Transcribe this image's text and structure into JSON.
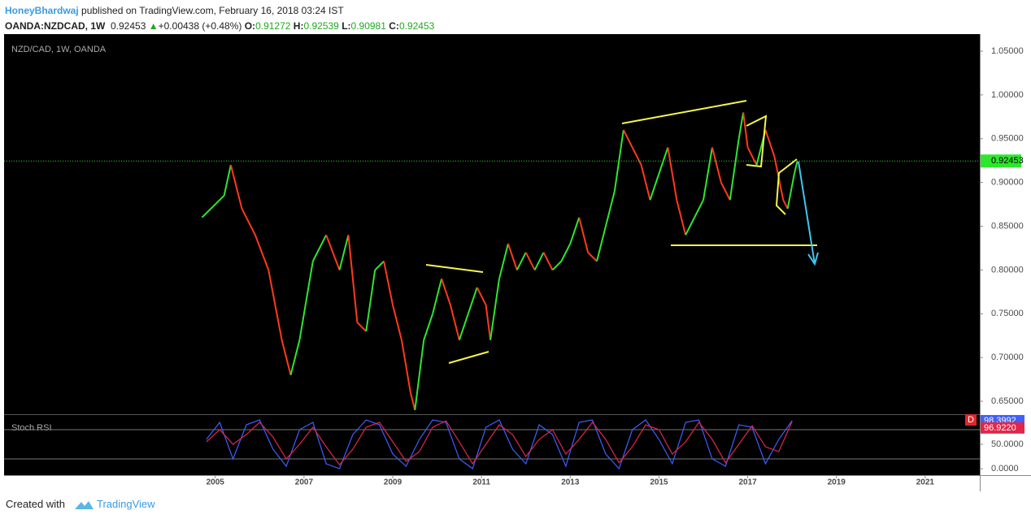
{
  "header": {
    "author": "HoneyBhardwaj",
    "published": "published on TradingView.com, February 16, 2018 03:24 IST",
    "symbol": "OANDA:NZDCAD, 1W",
    "price": "0.92453",
    "arrow": "▲",
    "change": "+0.00438 (+0.48%)",
    "o_label": "O:",
    "o": "0.91272",
    "h_label": "H:",
    "h": "0.92539",
    "l_label": "L:",
    "l": "0.90981",
    "c_label": "C:",
    "c": "0.92453"
  },
  "chart_data": {
    "type": "line",
    "title": "NZD/CAD, 1W, OANDA",
    "x": [
      2004.7,
      2004.9,
      2005.2,
      2005.35,
      2005.6,
      2005.9,
      2006.2,
      2006.5,
      2006.7,
      2006.9,
      2007.2,
      2007.5,
      2007.8,
      2008.0,
      2008.2,
      2008.4,
      2008.6,
      2008.8,
      2009.0,
      2009.2,
      2009.4,
      2009.5,
      2009.7,
      2009.9,
      2010.1,
      2010.3,
      2010.5,
      2010.7,
      2010.9,
      2011.1,
      2011.2,
      2011.4,
      2011.6,
      2011.8,
      2012.0,
      2012.2,
      2012.4,
      2012.6,
      2012.8,
      2013.0,
      2013.2,
      2013.4,
      2013.6,
      2013.8,
      2014.0,
      2014.2,
      2014.4,
      2014.6,
      2014.8,
      2015.0,
      2015.2,
      2015.4,
      2015.6,
      2015.8,
      2016.0,
      2016.2,
      2016.4,
      2016.6,
      2016.8,
      2016.9,
      2017.0,
      2017.2,
      2017.4,
      2017.6,
      2017.8,
      2017.9,
      2018.05,
      2018.12
    ],
    "values": [
      0.86,
      0.87,
      0.885,
      0.92,
      0.87,
      0.84,
      0.8,
      0.72,
      0.68,
      0.72,
      0.81,
      0.84,
      0.8,
      0.84,
      0.74,
      0.73,
      0.8,
      0.81,
      0.76,
      0.72,
      0.66,
      0.64,
      0.72,
      0.75,
      0.79,
      0.76,
      0.72,
      0.75,
      0.78,
      0.76,
      0.72,
      0.79,
      0.83,
      0.8,
      0.82,
      0.8,
      0.82,
      0.8,
      0.81,
      0.83,
      0.86,
      0.82,
      0.81,
      0.85,
      0.89,
      0.96,
      0.94,
      0.92,
      0.88,
      0.91,
      0.94,
      0.88,
      0.84,
      0.86,
      0.88,
      0.94,
      0.9,
      0.88,
      0.95,
      0.98,
      0.94,
      0.92,
      0.96,
      0.93,
      0.88,
      0.87,
      0.91,
      0.92453
    ],
    "up_color": "#2ee62e",
    "down_color": "#ff3a1c",
    "xlim": [
      2000.24,
      2022.23
    ],
    "xticks": [
      2005,
      2007,
      2009,
      2011,
      2013,
      2015,
      2017,
      2019,
      2021
    ],
    "ylim": [
      0.6352,
      1.0695
    ],
    "yticks": [
      {
        "value": 1.05,
        "label": "1.05000"
      },
      {
        "value": 1.0,
        "label": "1.00000"
      },
      {
        "value": 0.95,
        "label": "0.95000"
      },
      {
        "value": 0.9,
        "label": "0.90000"
      },
      {
        "value": 0.85,
        "label": "0.85000"
      },
      {
        "value": 0.8,
        "label": "0.80000"
      },
      {
        "value": 0.75,
        "label": "0.75000"
      },
      {
        "value": 0.7,
        "label": "0.70000"
      },
      {
        "value": 0.65,
        "label": "0.65000"
      }
    ],
    "last_value": 0.92453,
    "last_color": "#2ee62e",
    "indicator": {
      "title": "Stoch RSI",
      "flag": "D",
      "x": [
        2004.8,
        2005.1,
        2005.4,
        2005.7,
        2006.0,
        2006.3,
        2006.6,
        2006.9,
        2007.2,
        2007.5,
        2007.8,
        2008.1,
        2008.4,
        2008.7,
        2009.0,
        2009.3,
        2009.6,
        2009.9,
        2010.2,
        2010.5,
        2010.8,
        2011.1,
        2011.4,
        2011.7,
        2012.0,
        2012.3,
        2012.6,
        2012.9,
        2013.2,
        2013.5,
        2013.8,
        2014.1,
        2014.4,
        2014.7,
        2015.0,
        2015.3,
        2015.6,
        2015.9,
        2016.2,
        2016.5,
        2016.8,
        2017.1,
        2017.4,
        2017.7,
        2018.0
      ],
      "series": [
        {
          "color": "#3f5fff",
          "values": [
            60,
            95,
            20,
            90,
            100,
            40,
            5,
            80,
            95,
            10,
            0,
            70,
            100,
            90,
            30,
            5,
            60,
            100,
            95,
            20,
            0,
            85,
            100,
            40,
            10,
            90,
            70,
            5,
            95,
            100,
            30,
            0,
            80,
            100,
            60,
            10,
            95,
            100,
            20,
            5,
            90,
            85,
            10,
            60,
            98.3992
          ],
          "last_label": "98.3992"
        },
        {
          "color": "#e0264a",
          "values": [
            55,
            80,
            50,
            70,
            95,
            65,
            20,
            50,
            85,
            45,
            8,
            40,
            85,
            95,
            55,
            15,
            35,
            85,
            98,
            55,
            10,
            50,
            90,
            70,
            25,
            60,
            80,
            30,
            60,
            95,
            60,
            12,
            45,
            90,
            80,
            30,
            55,
            95,
            60,
            12,
            50,
            88,
            45,
            35,
            96.922
          ],
          "last_label": "96.9220"
        }
      ],
      "ylim": [
        -13.3,
        111.7
      ],
      "yticks": [
        {
          "value": 50,
          "label": "50.0000"
        },
        {
          "value": 0,
          "label": "0.0000"
        }
      ],
      "levels": [
        80,
        20
      ]
    }
  },
  "footer": {
    "text": "Created with",
    "brand": "TradingView"
  }
}
